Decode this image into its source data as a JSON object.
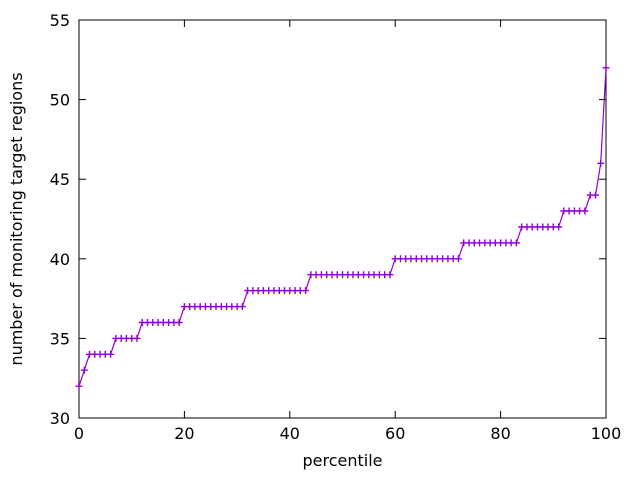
{
  "chart_data": {
    "type": "line",
    "title": "",
    "xlabel": "percentile",
    "ylabel": "number of monitoring target regions",
    "xlim": [
      0,
      100
    ],
    "ylim": [
      30,
      55
    ],
    "xticks": [
      0,
      20,
      40,
      60,
      80,
      100
    ],
    "yticks": [
      30,
      35,
      40,
      45,
      50,
      55
    ],
    "grid": false,
    "legend": "none",
    "marker": "plus",
    "line_color": "#9400d3",
    "axis_color": "#000000",
    "background_color": "#ffffff",
    "series": [
      {
        "name": "number of monitoring target regions vs percentile",
        "x": [
          0,
          1,
          2,
          3,
          4,
          5,
          6,
          7,
          8,
          9,
          10,
          11,
          12,
          13,
          14,
          15,
          16,
          17,
          18,
          19,
          20,
          21,
          22,
          23,
          24,
          25,
          26,
          27,
          28,
          29,
          30,
          31,
          32,
          33,
          34,
          35,
          36,
          37,
          38,
          39,
          40,
          41,
          42,
          43,
          44,
          45,
          46,
          47,
          48,
          49,
          50,
          51,
          52,
          53,
          54,
          55,
          56,
          57,
          58,
          59,
          60,
          61,
          62,
          63,
          64,
          65,
          66,
          67,
          68,
          69,
          70,
          71,
          72,
          73,
          74,
          75,
          76,
          77,
          78,
          79,
          80,
          81,
          82,
          83,
          84,
          85,
          86,
          87,
          88,
          89,
          90,
          91,
          92,
          93,
          94,
          95,
          96,
          97,
          98,
          99,
          100
        ],
        "values": [
          32,
          33,
          34,
          34,
          34,
          34,
          34,
          35,
          35,
          35,
          35,
          35,
          36,
          36,
          36,
          36,
          36,
          36,
          36,
          36,
          37,
          37,
          37,
          37,
          37,
          37,
          37,
          37,
          37,
          37,
          37,
          37,
          38,
          38,
          38,
          38,
          38,
          38,
          38,
          38,
          38,
          38,
          38,
          38,
          39,
          39,
          39,
          39,
          39,
          39,
          39,
          39,
          39,
          39,
          39,
          39,
          39,
          39,
          39,
          39,
          40,
          40,
          40,
          40,
          40,
          40,
          40,
          40,
          40,
          40,
          40,
          40,
          40,
          41,
          41,
          41,
          41,
          41,
          41,
          41,
          41,
          41,
          41,
          41,
          42,
          42,
          42,
          42,
          42,
          42,
          42,
          42,
          43,
          43,
          43,
          43,
          43,
          44,
          44,
          46,
          52
        ]
      }
    ]
  }
}
